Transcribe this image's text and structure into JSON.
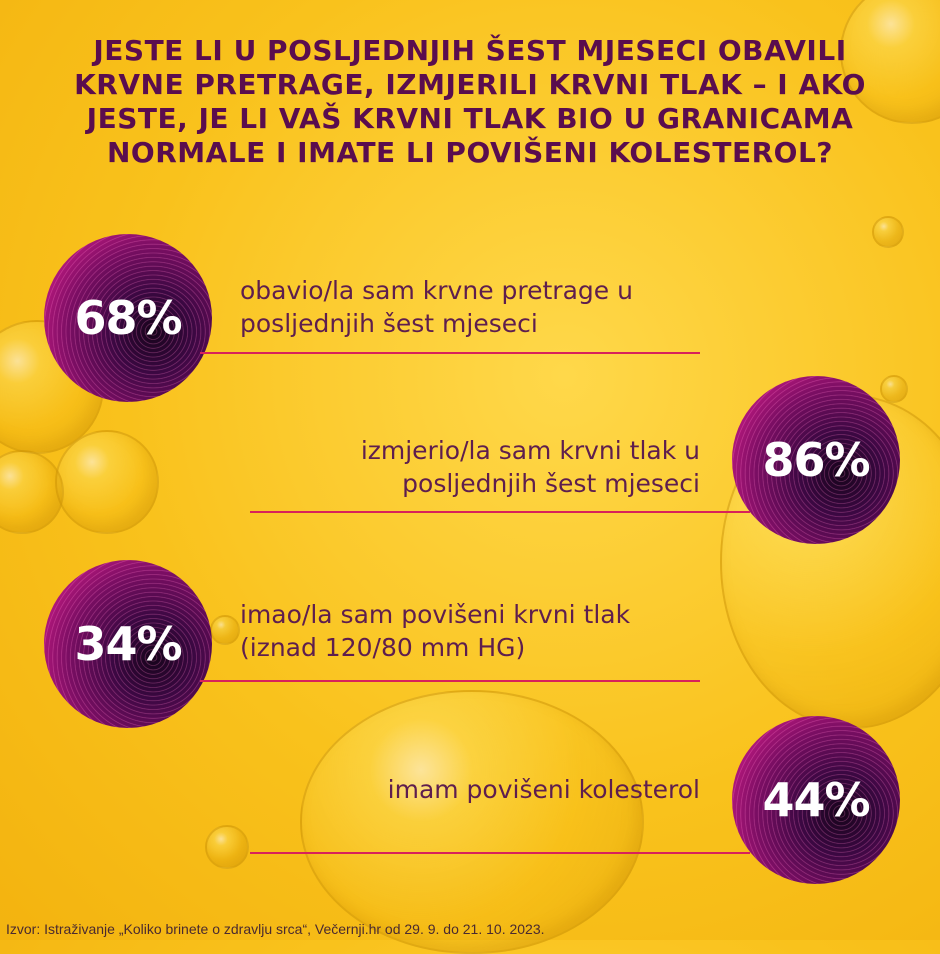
{
  "title": "Jeste li u posljednjih šest mjeseci obavili krvne pretrage, izmjerili krvni tlak – i ako jeste, je li vaš krvni tlak bio u granicama normale i imate li povišeni kolesterol?",
  "colors": {
    "background": "#f9c21c",
    "title": "#5a0d4e",
    "label": "#5e1e4e",
    "divider": "#d8225a",
    "disc_outer": "#e0268f",
    "disc_inner": "#16041a"
  },
  "chart_data": {
    "type": "bar",
    "categories": [
      "obavio/la sam krvne pretrage u posljednjih šest mjeseci",
      "izmjerio/la sam krvni tlak u posljednjih šest mjeseci",
      "imao/la sam povišeni krvni tlak (iznad 120/80 mm HG)",
      "imam povišeni kolesterol"
    ],
    "values": [
      68,
      86,
      34,
      44
    ],
    "unit": "%"
  },
  "stats": [
    {
      "value": "68%",
      "line1": "obavio/la sam krvne pretrage u",
      "line2": "posljednjih šest mjeseci"
    },
    {
      "value": "86%",
      "line1": "izmjerio/la sam krvni tlak u",
      "line2": "posljednjih šest mjeseci"
    },
    {
      "value": "34%",
      "line1": "imao/la sam povišeni krvni tlak",
      "line2": "(iznad 120/80 mm HG)"
    },
    {
      "value": "44%",
      "line1": "imam povišeni kolesterol",
      "line2": ""
    }
  ],
  "source": "Izvor: Istraživanje „Koliko brinete o zdravlju srca“,  Večernji.hr od 29. 9. do 21. 10. 2023."
}
